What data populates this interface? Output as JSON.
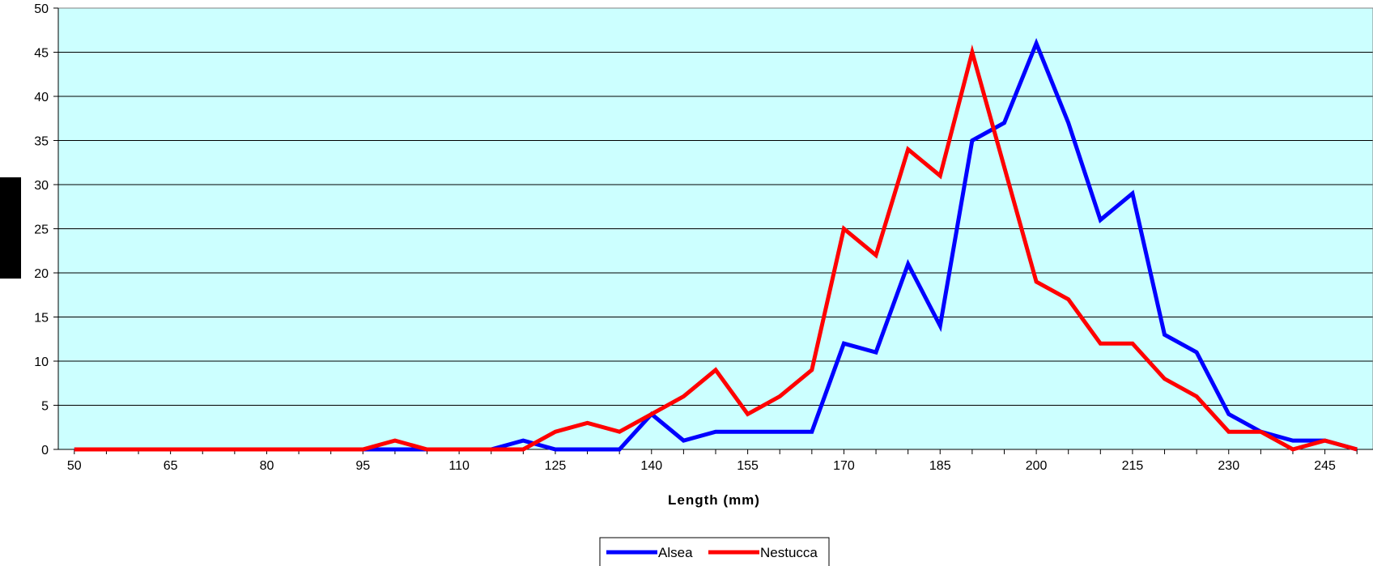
{
  "chart_data": {
    "type": "line",
    "title": "",
    "xlabel": "Length (mm)",
    "ylabel": "",
    "x": [
      50,
      55,
      60,
      65,
      70,
      75,
      80,
      85,
      90,
      95,
      100,
      105,
      110,
      115,
      120,
      125,
      130,
      135,
      140,
      145,
      150,
      155,
      160,
      165,
      170,
      175,
      180,
      185,
      190,
      195,
      200,
      205,
      210,
      215,
      220,
      225,
      230,
      235,
      240,
      245,
      250
    ],
    "x_tick_labels": [
      "50",
      "65",
      "80",
      "95",
      "110",
      "125",
      "140",
      "155",
      "170",
      "185",
      "200",
      "215",
      "230",
      "245"
    ],
    "x_tick_values": [
      50,
      65,
      80,
      95,
      110,
      125,
      140,
      155,
      170,
      185,
      200,
      215,
      230,
      245
    ],
    "xlim": [
      47.5,
      252.5
    ],
    "ylim": [
      0,
      50
    ],
    "y_ticks": [
      0,
      5,
      10,
      15,
      20,
      25,
      30,
      35,
      40,
      45,
      50
    ],
    "grid": "horizontal",
    "legend_position": "bottom",
    "plot_background": "#CCFFFF",
    "series": [
      {
        "name": "Alsea",
        "color": "#0000FF",
        "values": [
          0,
          0,
          0,
          0,
          0,
          0,
          0,
          0,
          0,
          0,
          0,
          0,
          0,
          0,
          1,
          0,
          0,
          0,
          4,
          1,
          2,
          2,
          2,
          2,
          12,
          11,
          21,
          14,
          35,
          37,
          46,
          37,
          26,
          29,
          13,
          11,
          4,
          2,
          1,
          1,
          0
        ]
      },
      {
        "name": "Nestucca",
        "color": "#FF0000",
        "values": [
          0,
          0,
          0,
          0,
          0,
          0,
          0,
          0,
          0,
          0,
          1,
          0,
          0,
          0,
          0,
          2,
          3,
          2,
          4,
          6,
          9,
          4,
          6,
          9,
          25,
          22,
          34,
          31,
          45,
          32,
          19,
          17,
          12,
          12,
          8,
          6,
          2,
          2,
          0,
          1,
          0
        ]
      }
    ]
  }
}
